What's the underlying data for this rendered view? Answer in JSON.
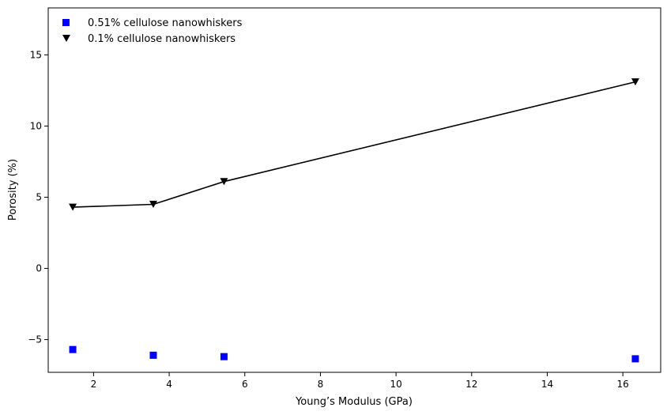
{
  "chart_data": {
    "type": "scatter",
    "title": "",
    "xlabel": "Young’s Modulus (GPa)",
    "ylabel": "Porosity (%)",
    "xlim": [
      0.8,
      17.0
    ],
    "ylim": [
      -7.3,
      18.3
    ],
    "xticks": [
      2,
      4,
      6,
      8,
      10,
      12,
      14,
      16
    ],
    "yticks": [
      -5,
      0,
      5,
      10,
      15
    ],
    "xtick_labels": [
      "2",
      "4",
      "6",
      "8",
      "10",
      "12",
      "14",
      "16"
    ],
    "ytick_labels": [
      "−5",
      "0",
      "5",
      "10",
      "15"
    ],
    "grid": false,
    "legend_position": "top-left",
    "series": [
      {
        "name": "0.51% cellulose nanowhiskers",
        "marker": "square",
        "line": false,
        "color": "#0000ff",
        "x": [
          1.45,
          3.58,
          5.45,
          16.33
        ],
        "y": [
          -5.7,
          -6.1,
          -6.2,
          -6.35
        ]
      },
      {
        "name": "0.1% cellulose nanowhiskers",
        "marker": "triangle-down",
        "line": true,
        "color": "#000000",
        "x": [
          1.45,
          3.58,
          5.45,
          16.33
        ],
        "y": [
          4.3,
          4.5,
          6.1,
          13.1
        ]
      }
    ]
  }
}
